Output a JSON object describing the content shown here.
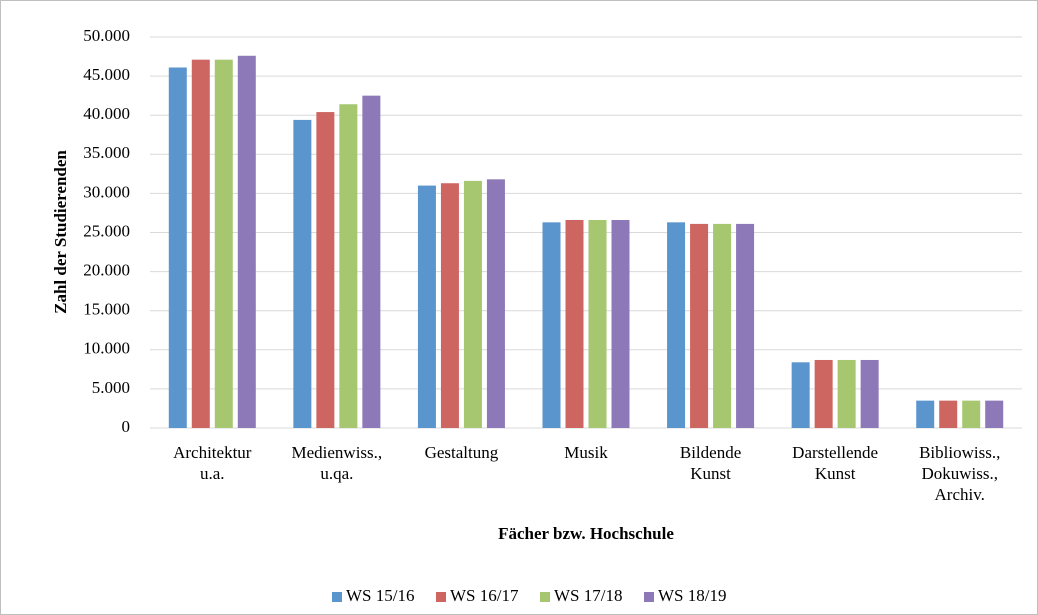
{
  "chart_data": {
    "type": "bar",
    "x_label": "Fächer bzw. Hochschule",
    "y_label": "Zahl der Studierenden",
    "categories": [
      "Architektur\nu.a.",
      "Medienwiss.,\nu.qa.",
      "Gestaltung",
      "Musik",
      "Bildende\nKunst",
      "Darstellende\nKunst",
      "Bibliowiss.,\nDokuwiss.,\nArchiv."
    ],
    "series": [
      {
        "name": "WS 15/16",
        "color": "#5a96cd",
        "values": [
          46100,
          39400,
          31000,
          26300,
          26300,
          8400,
          3500
        ]
      },
      {
        "name": "WS 16/17",
        "color": "#cd6560",
        "values": [
          47100,
          40400,
          31300,
          26600,
          26100,
          8700,
          3500
        ]
      },
      {
        "name": "WS 17/18",
        "color": "#a6c66f",
        "values": [
          47100,
          41400,
          31600,
          26600,
          26100,
          8700,
          3500
        ]
      },
      {
        "name": "WS 18/19",
        "color": "#8d78b8",
        "values": [
          47600,
          42500,
          31800,
          26600,
          26100,
          8700,
          3500
        ]
      }
    ],
    "ylim": [
      0,
      50000
    ],
    "yticks": [
      0,
      {
        "value": 5000,
        "label": "5.000"
      },
      {
        "value": 10000,
        "label": "10.000"
      },
      {
        "value": 15000,
        "label": "15.000"
      },
      {
        "value": 20000,
        "label": "20.000"
      },
      {
        "value": 25000,
        "label": "25.000"
      },
      {
        "value": 30000,
        "label": "30.000"
      },
      {
        "value": 35000,
        "label": "35.000"
      },
      {
        "value": 40000,
        "label": "40.000"
      },
      {
        "value": 45000,
        "label": "45.000"
      },
      {
        "value": 50000,
        "label": "50.000"
      }
    ],
    "grid": true,
    "legend": "bottom"
  }
}
